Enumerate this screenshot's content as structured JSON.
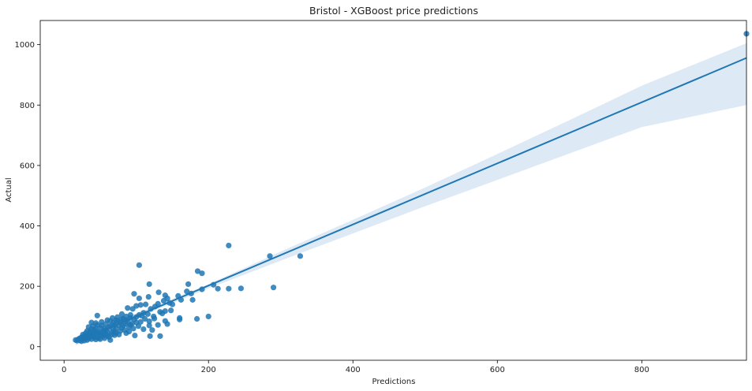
{
  "chart_data": {
    "type": "scatter",
    "title": "Bristol - XGBoost price predictions",
    "xlabel": "Predictions",
    "ylabel": "Actual",
    "xlim": [
      -33,
      945
    ],
    "ylim": [
      -45,
      1080
    ],
    "xticks": [
      0,
      200,
      400,
      600,
      800
    ],
    "yticks": [
      0,
      200,
      400,
      600,
      800,
      1000
    ],
    "grid": false,
    "legend": "none",
    "colors": {
      "points": "#1f77b4",
      "line": "#1f77b4",
      "band": "#c6dbef"
    },
    "regression": {
      "x": [
        16,
        945
      ],
      "y": [
        16,
        956
      ]
    },
    "confidence_band": {
      "x": [
        16,
        100,
        200,
        300,
        400,
        500,
        600,
        700,
        800,
        945
      ],
      "lower": [
        4,
        95,
        193,
        285,
        375,
        465,
        552,
        640,
        727,
        800
      ],
      "upper": [
        28,
        110,
        207,
        315,
        420,
        527,
        638,
        750,
        864,
        1005
      ]
    },
    "points": [
      [
        945,
        1036
      ],
      [
        228,
        335
      ],
      [
        285,
        300
      ],
      [
        327,
        300
      ],
      [
        104,
        270
      ],
      [
        185,
        250
      ],
      [
        191,
        243
      ],
      [
        172,
        207
      ],
      [
        118,
        207
      ],
      [
        207,
        205
      ],
      [
        290,
        196
      ],
      [
        245,
        193
      ],
      [
        228,
        192
      ],
      [
        213,
        192
      ],
      [
        191,
        190
      ],
      [
        131,
        180
      ],
      [
        97,
        175
      ],
      [
        170,
        183
      ],
      [
        176,
        176
      ],
      [
        140,
        170
      ],
      [
        158,
        168
      ],
      [
        117,
        165
      ],
      [
        104,
        160
      ],
      [
        143,
        160
      ],
      [
        178,
        155
      ],
      [
        162,
        155
      ],
      [
        138,
        152
      ],
      [
        146,
        145
      ],
      [
        130,
        142
      ],
      [
        113,
        140
      ],
      [
        106,
        138
      ],
      [
        100,
        135
      ],
      [
        126,
        133
      ],
      [
        88,
        128
      ],
      [
        95,
        125
      ],
      [
        120,
        125
      ],
      [
        140,
        118
      ],
      [
        148,
        120
      ],
      [
        133,
        115
      ],
      [
        110,
        112
      ],
      [
        136,
        110
      ],
      [
        116,
        108
      ],
      [
        80,
        108
      ],
      [
        104,
        105
      ],
      [
        92,
        105
      ],
      [
        86,
        100
      ],
      [
        200,
        100
      ],
      [
        46,
        103
      ],
      [
        160,
        95
      ],
      [
        184,
        92
      ],
      [
        125,
        93
      ],
      [
        112,
        92
      ],
      [
        97,
        90
      ],
      [
        72,
        88
      ],
      [
        82,
        92
      ],
      [
        140,
        85
      ],
      [
        118,
        84
      ],
      [
        60,
        88
      ],
      [
        74,
        86
      ],
      [
        88,
        82
      ],
      [
        67,
        95
      ],
      [
        78,
        80
      ],
      [
        100,
        80
      ],
      [
        160,
        90
      ],
      [
        143,
        75
      ],
      [
        130,
        72
      ],
      [
        118,
        70
      ],
      [
        103,
        68
      ],
      [
        92,
        72
      ],
      [
        85,
        75
      ],
      [
        76,
        70
      ],
      [
        70,
        72
      ],
      [
        64,
        68
      ],
      [
        58,
        75
      ],
      [
        52,
        70
      ],
      [
        46,
        72
      ],
      [
        40,
        68
      ],
      [
        34,
        65
      ],
      [
        38,
        80
      ],
      [
        44,
        78
      ],
      [
        56,
        60
      ],
      [
        62,
        65
      ],
      [
        68,
        58
      ],
      [
        80,
        62
      ],
      [
        90,
        65
      ],
      [
        96,
        60
      ],
      [
        110,
        58
      ],
      [
        122,
        55
      ],
      [
        50,
        62
      ],
      [
        42,
        55
      ],
      [
        36,
        50
      ],
      [
        30,
        45
      ],
      [
        26,
        40
      ],
      [
        32,
        52
      ],
      [
        48,
        48
      ],
      [
        55,
        52
      ],
      [
        60,
        50
      ],
      [
        66,
        48
      ],
      [
        72,
        45
      ],
      [
        78,
        52
      ],
      [
        84,
        55
      ],
      [
        90,
        50
      ],
      [
        66,
        40
      ],
      [
        58,
        42
      ],
      [
        52,
        38
      ],
      [
        46,
        45
      ],
      [
        40,
        42
      ],
      [
        34,
        38
      ],
      [
        28,
        35
      ],
      [
        24,
        30
      ],
      [
        30,
        28
      ],
      [
        36,
        32
      ],
      [
        42,
        30
      ],
      [
        48,
        28
      ],
      [
        54,
        35
      ],
      [
        62,
        32
      ],
      [
        70,
        38
      ],
      [
        76,
        40
      ],
      [
        86,
        45
      ],
      [
        64,
        22
      ],
      [
        56,
        28
      ],
      [
        44,
        24
      ],
      [
        38,
        25
      ],
      [
        32,
        22
      ],
      [
        26,
        25
      ],
      [
        22,
        22
      ],
      [
        18,
        20
      ],
      [
        20,
        25
      ],
      [
        24,
        18
      ],
      [
        28,
        20
      ],
      [
        16,
        22
      ],
      [
        22,
        28
      ],
      [
        34,
        28
      ],
      [
        40,
        35
      ],
      [
        46,
        32
      ],
      [
        50,
        25
      ],
      [
        60,
        36
      ],
      [
        72,
        60
      ],
      [
        82,
        70
      ],
      [
        94,
        76
      ],
      [
        98,
        37
      ],
      [
        119,
        35
      ],
      [
        133,
        35
      ],
      [
        106,
        82
      ],
      [
        124,
        100
      ],
      [
        150,
        140
      ],
      [
        52,
        82
      ],
      [
        44,
        60
      ],
      [
        30,
        36
      ],
      [
        38,
        58
      ],
      [
        68,
        78
      ],
      [
        74,
        98
      ],
      [
        58,
        55
      ],
      [
        64,
        85
      ],
      [
        86,
        88
      ],
      [
        92,
        95
      ],
      [
        80,
        92
      ],
      [
        100,
        98
      ],
      [
        108,
        102
      ],
      [
        54,
        45
      ],
      [
        48,
        40
      ],
      [
        36,
        45
      ],
      [
        26,
        32
      ],
      [
        42,
        48
      ],
      [
        70,
        50
      ]
    ]
  }
}
